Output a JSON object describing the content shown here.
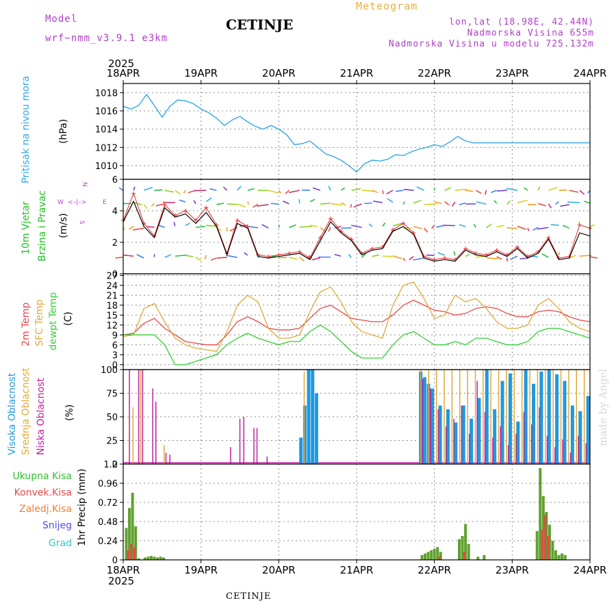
{
  "header": {
    "model_label": "Model",
    "model_name": "wrf−nmm_v3.9.1 e3km",
    "city": "CETINJE",
    "product": "Meteogram",
    "coords": "lon,lat (18.98E, 42.44N)",
    "elevation": "Nadmorska Visina 655m",
    "model_elevation": "Nadmorska Visina u modelu 725.132m",
    "year_top": "2025",
    "year_bottom": "2025",
    "footer_city": "CETINJE",
    "credit": "made by Angel"
  },
  "time_axis": {
    "labels": [
      "18APR",
      "19APR",
      "20APR",
      "21APR",
      "22APR",
      "23APR",
      "24APR"
    ]
  },
  "compass": {
    "n": "N",
    "w": "W",
    "e": "E",
    "s": "S"
  },
  "colors": {
    "pressure": "#30a8e8",
    "wind_label": "#20c020",
    "temp2m": "#e84848",
    "sfc": "#e0a838",
    "dew": "#30d030",
    "high_cloud": "#2098e0",
    "mid_cloud": "#e0a838",
    "low_cloud": "#c020a0",
    "total_precip": "#60a030",
    "conv_precip": "#e84848",
    "frozen": "#f08030",
    "snow": "#5050e0",
    "grad": "#30c8c0"
  },
  "chart_data": [
    {
      "type": "line",
      "title": "Pritisak na nivou mora",
      "ylabel": "(hPa)",
      "ylabel_title": "Pritisak na nivou mora",
      "ylim": [
        1008.5,
        1019
      ],
      "yticks": [
        "1010",
        "1012",
        "1014",
        "1016",
        "1018"
      ],
      "series": [
        {
          "name": "Pritisak na nivou mora",
          "x_days": [
            0,
            0.1,
            0.2,
            0.3,
            0.4,
            0.5,
            0.6,
            0.7,
            0.8,
            0.9,
            1.0,
            1.1,
            1.2,
            1.3,
            1.4,
            1.5,
            1.6,
            1.7,
            1.8,
            1.9,
            2.0,
            2.1,
            2.2,
            2.3,
            2.4,
            2.5,
            2.6,
            2.7,
            2.8,
            2.9,
            3.0,
            3.1,
            3.2,
            3.3,
            3.4,
            3.5,
            3.6,
            3.7,
            3.8,
            3.9,
            4.0,
            4.1,
            4.2,
            4.3,
            4.4,
            4.5,
            4.6,
            4.7,
            4.8,
            4.9,
            5.0,
            5.1,
            5.2,
            5.3,
            5.4,
            5.5,
            5.6,
            5.7,
            5.8,
            5.9,
            6.0
          ],
          "values": [
            1016.5,
            1016.2,
            1016.6,
            1017.8,
            1016.6,
            1015.3,
            1016.5,
            1017.2,
            1017.1,
            1016.8,
            1016.2,
            1015.8,
            1015.2,
            1014.4,
            1015.0,
            1015.4,
            1014.8,
            1014.3,
            1014.0,
            1014.4,
            1014.0,
            1013.4,
            1012.3,
            1012.4,
            1012.7,
            1012.0,
            1011.3,
            1011.0,
            1010.6,
            1010.0,
            1009.3,
            1010.2,
            1010.6,
            1010.5,
            1010.7,
            1011.2,
            1011.1,
            1011.5,
            1011.8,
            1012.0,
            1012.3,
            1012.1,
            1012.6,
            1013.2,
            1012.7,
            1012.5,
            1012.5,
            1012.5,
            1012.5,
            1012.5,
            1012.5,
            1012.5,
            1012.5,
            1012.5,
            1012.5,
            1012.5,
            1012.5,
            1012.5,
            1012.5,
            1012.5,
            1012.5
          ]
        }
      ]
    },
    {
      "type": "line",
      "title": "10m Vjetar Brzina i Pravac",
      "ylabel": "(m/s)",
      "ylabel_title_1": "10m Vjetar",
      "ylabel_title_2": "Brzina i Pravac",
      "ylim": [
        0,
        6
      ],
      "yticks": [
        "0",
        "2",
        "4",
        "6"
      ],
      "series": [
        {
          "name": "speed",
          "values": [
            3.3,
            4.6,
            3.0,
            2.3,
            4.2,
            3.6,
            3.8,
            3.2,
            3.9,
            3.0,
            1.2,
            3.2,
            2.9,
            1.1,
            1.0,
            1.1,
            1.2,
            1.3,
            0.9,
            2.1,
            3.3,
            2.6,
            2.1,
            1.2,
            1.5,
            1.6,
            2.7,
            3.0,
            2.5,
            1.0,
            0.8,
            0.9,
            0.8,
            1.5,
            1.2,
            1.1,
            1.4,
            1.1,
            1.6,
            1.0,
            1.3,
            2.2,
            0.9,
            1.0,
            2.6,
            2.4
          ]
        },
        {
          "name": "gust",
          "values": [
            3.4,
            5.1,
            3.2,
            2.4,
            4.4,
            3.7,
            4.0,
            3.4,
            4.2,
            3.1,
            1.3,
            3.4,
            3.0,
            1.2,
            1.1,
            1.2,
            1.3,
            1.4,
            1.0,
            2.3,
            3.5,
            2.7,
            2.2,
            1.3,
            1.6,
            1.7,
            2.8,
            3.2,
            2.6,
            1.1,
            0.9,
            1.0,
            0.9,
            1.6,
            1.3,
            1.2,
            1.5,
            1.2,
            1.7,
            1.1,
            1.4,
            2.3,
            1.0,
            1.1,
            3.1,
            2.9
          ]
        }
      ]
    },
    {
      "type": "line",
      "title": "2m Temp / SFC Temp / dewpt Temp",
      "ylabel": "(C)",
      "ylabel_t2m": "2m Temp",
      "ylabel_sfc": "SFC Temp",
      "ylabel_dew": "dewpt Temp",
      "ylim": [
        -1.5,
        27.5
      ],
      "yticks": [
        "0",
        "3",
        "6",
        "9",
        "12",
        "15",
        "18",
        "21",
        "24",
        "27"
      ],
      "series": [
        {
          "name": "2m Temp",
          "values": [
            9,
            9.5,
            12.5,
            14,
            11,
            9,
            7,
            6.5,
            6,
            6,
            9,
            13,
            14.5,
            13,
            11,
            10.5,
            10.5,
            11,
            14,
            17,
            18,
            16,
            14,
            13.5,
            13,
            13,
            15,
            18,
            19.5,
            18,
            16.5,
            16,
            15,
            15.5,
            17,
            17.5,
            17,
            15.5,
            14.5,
            14.5,
            16,
            16.5,
            16,
            14.5,
            13.5,
            13
          ]
        },
        {
          "name": "SFC Temp",
          "values": [
            8.5,
            9,
            17,
            18.5,
            13,
            8,
            6,
            5,
            4.5,
            4,
            10,
            18,
            21,
            19,
            11,
            8,
            8,
            9,
            16,
            22,
            23.5,
            19,
            13,
            10,
            9,
            8,
            18,
            24,
            25,
            20,
            14,
            15,
            21,
            19,
            20,
            17,
            13,
            11,
            11,
            12,
            18,
            20,
            17,
            13,
            11,
            10
          ]
        },
        {
          "name": "dewpt Temp",
          "values": [
            9,
            9,
            9,
            9,
            6,
            0,
            0,
            1,
            2,
            3,
            6,
            8,
            9.5,
            8,
            7,
            6,
            7,
            7,
            10,
            12,
            10,
            7,
            4,
            2,
            2,
            2,
            6,
            9,
            10,
            8,
            6,
            6,
            7,
            6,
            8,
            8,
            7,
            6,
            6,
            7,
            10,
            11,
            11,
            10,
            9,
            8
          ]
        }
      ]
    },
    {
      "type": "bar",
      "title": "Visoka / Srednja / Niska Oblacnost",
      "ylabel": "(%)",
      "ylabel_high": "Visoka Oblacnost",
      "ylabel_mid": "Srednja Oblacnost",
      "ylabel_low": "Niska Oblacnost",
      "ylim": [
        0,
        100
      ],
      "yticks": [
        "0",
        "25",
        "50",
        "75",
        "100"
      ],
      "series": [
        {
          "name": "Visoka",
          "x_days": [
            2.28,
            2.33,
            2.38,
            2.43,
            2.48,
            3.82,
            3.87,
            3.92,
            3.97,
            4.07,
            4.17,
            4.27,
            4.37,
            4.47,
            4.57,
            4.67,
            4.77,
            4.87,
            4.97,
            5.07,
            5.17,
            5.27,
            5.37,
            5.47,
            5.57,
            5.67,
            5.77,
            5.87,
            5.97
          ],
          "values": [
            28,
            62,
            100,
            100,
            75,
            98,
            92,
            85,
            80,
            62,
            58,
            44,
            62,
            48,
            70,
            100,
            58,
            88,
            96,
            45,
            100,
            85,
            98,
            100,
            95,
            88,
            62,
            56,
            72
          ]
        },
        {
          "name": "Srednja",
          "x_days": [
            0.1,
            0.2,
            0.5,
            2.3,
            3.8,
            3.9,
            4.0,
            4.1,
            4.2,
            4.3,
            4.4,
            4.5,
            4.6,
            4.7,
            4.8,
            4.9,
            5.0,
            5.1,
            5.2,
            5.3,
            5.4,
            5.5,
            5.6,
            5.7,
            5.8,
            5.9
          ],
          "values": [
            60,
            100,
            20,
            98,
            100,
            100,
            100,
            100,
            100,
            100,
            100,
            100,
            100,
            100,
            100,
            100,
            100,
            100,
            100,
            100,
            100,
            100,
            100,
            100,
            100,
            100
          ]
        },
        {
          "name": "Niska",
          "x_days": [
            0.08,
            0.2,
            0.25,
            0.38,
            0.42,
            0.55,
            0.6,
            1.38,
            1.5,
            1.55,
            1.68,
            1.72,
            1.85,
            3.85,
            3.95,
            4.05,
            4.15,
            4.25,
            4.35,
            4.45,
            4.55,
            4.65,
            4.75,
            4.85,
            4.95,
            5.05,
            5.15,
            5.25,
            5.35,
            5.45,
            5.55,
            5.65,
            5.75,
            5.85,
            5.95
          ],
          "values": [
            100,
            100,
            100,
            80,
            66,
            12,
            10,
            18,
            48,
            50,
            38,
            38,
            8,
            90,
            80,
            58,
            40,
            48,
            62,
            32,
            88,
            55,
            28,
            40,
            20,
            32,
            55,
            42,
            60,
            30,
            18,
            26,
            12,
            30,
            22
          ]
        }
      ]
    },
    {
      "type": "bar",
      "title": "1hr Precip",
      "ylabel": "1hr Precip (mm)",
      "ylim": [
        0,
        1.2
      ],
      "yticks": [
        "0",
        "0.24",
        "0.48",
        "0.72",
        "0.96",
        "1.2"
      ],
      "series": [
        {
          "name": "Ukupna Kisa",
          "x_days": [
            0.04,
            0.08,
            0.12,
            0.16,
            0.2,
            0.28,
            0.32,
            0.36,
            0.4,
            0.44,
            0.48,
            0.52,
            3.84,
            3.88,
            3.92,
            3.96,
            4.0,
            4.04,
            4.08,
            4.32,
            4.36,
            4.4,
            4.44,
            4.56,
            4.64,
            5.32,
            5.36,
            5.4,
            5.44,
            5.48,
            5.52,
            5.56,
            5.6,
            5.64,
            5.68
          ],
          "values": [
            0.4,
            0.65,
            0.84,
            0.42,
            0.02,
            0.03,
            0.04,
            0.05,
            0.04,
            0.03,
            0.04,
            0.03,
            0.06,
            0.08,
            0.1,
            0.12,
            0.14,
            0.16,
            0.1,
            0.26,
            0.3,
            0.45,
            0.2,
            0.04,
            0.06,
            0.36,
            1.15,
            0.8,
            0.6,
            0.44,
            0.24,
            0.12,
            0.06,
            0.08,
            0.06
          ]
        },
        {
          "name": "Konvek.Kisa",
          "x_days": [
            0.06,
            0.1,
            0.14,
            4.06,
            4.38,
            5.38,
            5.42,
            5.46
          ],
          "values": [
            0.12,
            0.2,
            0.16,
            0.04,
            0.1,
            0.38,
            0.56,
            0.3
          ]
        }
      ]
    }
  ],
  "legend": {
    "precip": [
      "Ukupna Kisa",
      "Konvek.Kisa",
      "Zaledj.Kisa",
      "Snijeg",
      "Grad"
    ]
  }
}
